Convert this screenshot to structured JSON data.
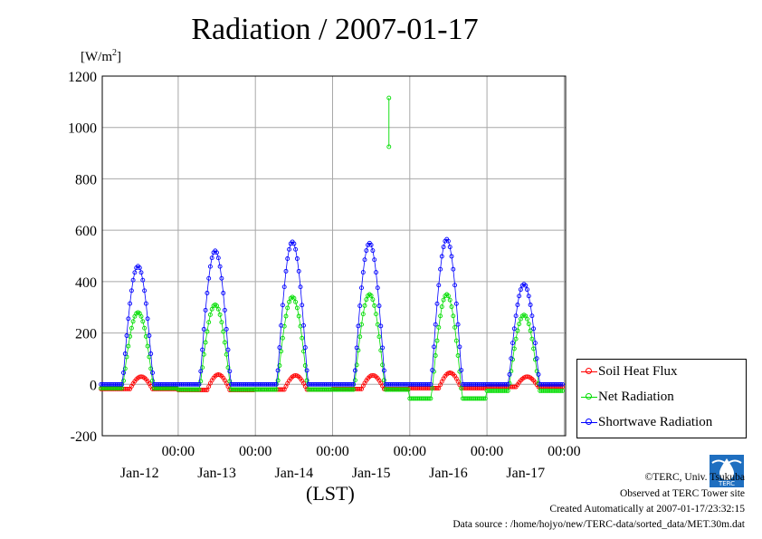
{
  "title": "Radiation / 2007-01-17",
  "unit": {
    "base": "[W/m",
    "sup": "2",
    "close": "]"
  },
  "legend": [
    {
      "label": "Soil Heat Flux",
      "color": "#ff0000"
    },
    {
      "label": "Net Radiation",
      "color": "#00dd00"
    },
    {
      "label": "Shortwave Radiation",
      "color": "#0000ff"
    }
  ],
  "credits": {
    "org": "©TERC, Univ. Tsukuba",
    "site": "Observed at TERC Tower site",
    "created": "Created Automatically at 2007-01-17/23:32:15",
    "source": "Data source : /home/hojyo/new/TERC-data/sorted_data/MET.30m.dat"
  },
  "logo_text": "TERC",
  "chart_data": {
    "type": "line",
    "title": "Radiation / 2007-01-17",
    "ylabel": "[W/m2]",
    "xlabel": "(LST)",
    "ylim": [
      -200,
      1200
    ],
    "yticks": [
      -200,
      0,
      200,
      400,
      600,
      800,
      1000,
      1200
    ],
    "xlim_days": [
      0,
      6
    ],
    "xticks": [
      {
        "day": 1,
        "time": "00:00",
        "date": "Jan-12"
      },
      {
        "day": 2,
        "time": "00:00",
        "date": "Jan-13"
      },
      {
        "day": 3,
        "time": "00:00",
        "date": "Jan-14"
      },
      {
        "day": 4,
        "time": "00:00",
        "date": "Jan-15"
      },
      {
        "day": 5,
        "time": "00:00",
        "date": "Jan-16"
      },
      {
        "day": 6,
        "time": "00:00",
        "date": "Jan-17"
      }
    ],
    "grid": true,
    "legend_position": "right-bottom",
    "days": [
      {
        "date": "Jan-12",
        "sw_peak": 460,
        "net_peak": 280,
        "net_night": -15,
        "soil_peak": 30,
        "soil_night": -18
      },
      {
        "date": "Jan-13",
        "sw_peak": 520,
        "net_peak": 310,
        "net_night": -20,
        "soil_peak": 38,
        "soil_night": -22
      },
      {
        "date": "Jan-14",
        "sw_peak": 555,
        "net_peak": 340,
        "net_night": -20,
        "soil_peak": 35,
        "soil_night": -20
      },
      {
        "date": "Jan-15",
        "sw_peak": 550,
        "net_peak": 350,
        "net_night": -20,
        "soil_peak": 35,
        "soil_night": -18
      },
      {
        "date": "Jan-16",
        "sw_peak": 565,
        "net_peak": 350,
        "net_night": -55,
        "soil_peak": 45,
        "soil_night": -15
      },
      {
        "date": "Jan-17",
        "sw_peak": 390,
        "net_peak": 270,
        "net_night": -25,
        "soil_peak": 30,
        "soil_night": -10
      }
    ],
    "net_spike": {
      "date": "Jan-15",
      "values": [
        1115,
        925
      ]
    }
  }
}
